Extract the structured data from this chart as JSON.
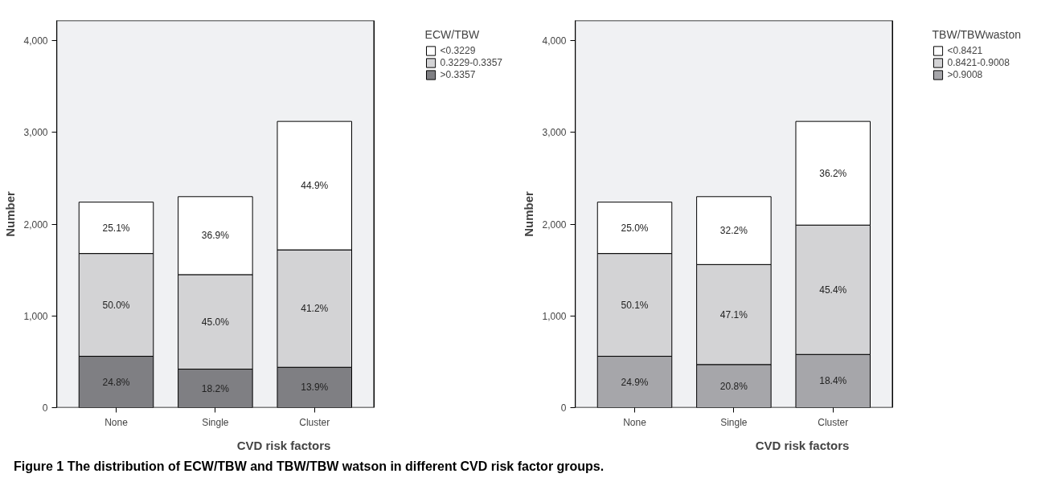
{
  "chart_data": [
    {
      "type": "bar",
      "stacked": true,
      "categories": [
        "None",
        "Single",
        "Cluster"
      ],
      "xlabel": "CVD risk factors",
      "ylabel": "Number",
      "legend_title": "ECW/TBW",
      "legend": "right",
      "grid": false,
      "ylim": [
        0,
        4220
      ],
      "yticks": [
        0,
        {
          "value": 1000,
          "label": "1,000"
        },
        {
          "value": 2000,
          "label": "2,000"
        },
        {
          "value": 3000,
          "label": "3,000"
        },
        {
          "value": 4000,
          "label": "4,000"
        }
      ],
      "series": [
        {
          "name": ">0.3357",
          "color": "#7f7f83",
          "values": [
            560,
            420,
            440
          ]
        },
        {
          "name": "0.3229-0.3357",
          "color": "#d3d3d5",
          "values": [
            1120,
            1030,
            1280
          ]
        },
        {
          "name": "<0.3229",
          "color": "#ffffff",
          "values": [
            560,
            850,
            1400
          ]
        }
      ],
      "annotations": [
        "24.8%",
        "50.0%",
        "25.1%",
        "18.2%",
        "45.0%",
        "36.9%",
        "13.9%",
        "41.2%",
        "44.9%",
        "Figure 1 The distribution of ECW/TBW and TBW/TBW watson in different CVD risk factor groups."
      ]
    },
    {
      "type": "bar",
      "stacked": true,
      "categories": [
        "None",
        "Single",
        "Cluster"
      ],
      "xlabel": "CVD risk factors",
      "ylabel": "Number",
      "legend_title": "TBW/TBWwaston",
      "legend": "right",
      "grid": false,
      "ylim": [
        0,
        4220
      ],
      "yticks": [
        0,
        {
          "value": 1000,
          "label": "1,000"
        },
        {
          "value": 2000,
          "label": "2,000"
        },
        {
          "value": 3000,
          "label": "3,000"
        },
        {
          "value": 4000,
          "label": "4,000"
        }
      ],
      "series": [
        {
          "name": ">0.9008",
          "color": "#a6a6aa",
          "values": [
            560,
            470,
            580
          ]
        },
        {
          "name": "0.8421-0.9008",
          "color": "#d3d3d5",
          "values": [
            1120,
            1090,
            1410
          ]
        },
        {
          "name": "<0.8421",
          "color": "#ffffff",
          "values": [
            560,
            740,
            1130
          ]
        }
      ],
      "annotations": [
        "24.9%",
        "50.1%",
        "25.0%",
        "20.8%",
        "47.1%",
        "32.2%",
        "18.4%",
        "45.4%",
        "36.2%"
      ]
    }
  ]
}
